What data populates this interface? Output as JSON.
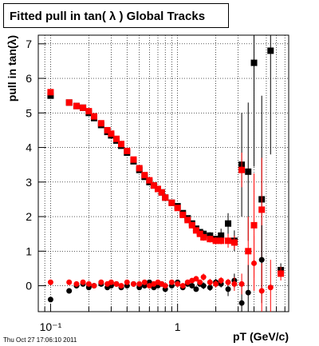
{
  "chart_data": {
    "type": "scatter",
    "title": "Fitted pull in tan( λ )  Global Tracks",
    "x_label": "pT (GeV/c)",
    "y_label": "pull in tan(λ)",
    "timestamp": "Thu Oct 27 17:06:10 2011",
    "log_x": true,
    "grid": true,
    "xlim": [
      0.08,
      7.5
    ],
    "ylim": [
      -0.75,
      7.25
    ],
    "xticks": [
      {
        "value": 0.1,
        "label": "10⁻¹"
      },
      1
    ],
    "xminor": [
      0.09,
      0.2,
      0.3,
      0.4,
      0.5,
      0.6,
      0.7,
      0.8,
      0.9,
      2,
      3,
      4,
      5,
      6,
      7
    ],
    "yticks": [
      0,
      1,
      2,
      3,
      4,
      5,
      6,
      7
    ],
    "series": [
      {
        "color": "#000000",
        "marker": "square",
        "x": [
          0.1,
          0.14,
          0.16,
          0.18,
          0.2,
          0.22,
          0.25,
          0.28,
          0.3,
          0.33,
          0.36,
          0.4,
          0.45,
          0.5,
          0.55,
          0.6,
          0.65,
          0.7,
          0.75,
          0.8,
          0.9,
          1.0,
          1.1,
          1.2,
          1.3,
          1.4,
          1.5,
          1.6,
          1.8,
          2.0,
          2.2,
          2.5,
          2.8,
          3.2,
          3.6,
          4.0,
          4.6,
          5.4,
          6.5
        ],
        "values": [
          5.5,
          5.3,
          5.2,
          5.15,
          5.0,
          4.85,
          4.65,
          4.45,
          4.35,
          4.2,
          4.05,
          3.85,
          3.6,
          3.35,
          3.15,
          3.0,
          2.9,
          2.8,
          2.7,
          2.55,
          2.4,
          2.3,
          2.1,
          1.95,
          1.8,
          1.65,
          1.55,
          1.5,
          1.45,
          1.35,
          1.45,
          1.8,
          1.3,
          3.5,
          3.3,
          6.45,
          2.5,
          6.8,
          0.45
        ],
        "errors": [
          0.05,
          0.05,
          0.05,
          0.05,
          0.05,
          0.05,
          0.05,
          0.05,
          0.05,
          0.05,
          0.05,
          0.05,
          0.05,
          0.05,
          0.05,
          0.05,
          0.05,
          0.05,
          0.05,
          0.05,
          0.05,
          0.05,
          0.05,
          0.05,
          0.05,
          0.05,
          0.05,
          0.1,
          0.1,
          0.1,
          0.2,
          0.3,
          0.3,
          1.5,
          2.0,
          3.0,
          3.0,
          3.0,
          0.2
        ]
      },
      {
        "color": "#ff0000",
        "marker": "square",
        "x": [
          0.1,
          0.14,
          0.16,
          0.18,
          0.2,
          0.22,
          0.25,
          0.28,
          0.3,
          0.33,
          0.36,
          0.4,
          0.45,
          0.5,
          0.55,
          0.6,
          0.65,
          0.7,
          0.75,
          0.8,
          0.9,
          1.0,
          1.1,
          1.2,
          1.3,
          1.4,
          1.5,
          1.6,
          1.8,
          2.0,
          2.2,
          2.5,
          2.8,
          3.2,
          3.6,
          4.0,
          4.6,
          5.4,
          6.5
        ],
        "values": [
          5.6,
          5.3,
          5.2,
          5.15,
          5.05,
          4.9,
          4.7,
          4.5,
          4.4,
          4.25,
          4.1,
          3.9,
          3.65,
          3.4,
          3.2,
          3.05,
          2.9,
          2.8,
          2.7,
          2.55,
          2.4,
          2.25,
          2.05,
          1.9,
          1.75,
          1.6,
          1.5,
          1.4,
          1.35,
          1.3,
          1.3,
          1.3,
          1.25,
          3.35,
          1.0,
          1.75,
          2.2,
          null,
          0.35
        ],
        "errors": [
          0.05,
          0.05,
          0.05,
          0.05,
          0.05,
          0.05,
          0.05,
          0.05,
          0.05,
          0.05,
          0.05,
          0.05,
          0.05,
          0.05,
          0.05,
          0.05,
          0.05,
          0.05,
          0.05,
          0.05,
          0.05,
          0.05,
          0.05,
          0.05,
          0.05,
          0.05,
          0.05,
          0.1,
          0.1,
          0.1,
          0.1,
          0.2,
          0.2,
          0.5,
          1.0,
          1.5,
          1.5,
          null,
          0.2
        ]
      },
      {
        "color": "#000000",
        "marker": "circle",
        "x": [
          0.1,
          0.14,
          0.16,
          0.18,
          0.2,
          0.22,
          0.25,
          0.28,
          0.3,
          0.33,
          0.36,
          0.4,
          0.45,
          0.5,
          0.55,
          0.6,
          0.65,
          0.7,
          0.75,
          0.8,
          0.9,
          1.0,
          1.1,
          1.2,
          1.3,
          1.4,
          1.5,
          1.6,
          1.8,
          2.0,
          2.2,
          2.5,
          2.8,
          3.2,
          3.6,
          4.0,
          4.6,
          5.4,
          6.5
        ],
        "values": [
          -0.4,
          -0.15,
          0.0,
          0.05,
          -0.05,
          0.0,
          0.05,
          -0.05,
          0.0,
          0.05,
          -0.05,
          0.0,
          0.05,
          -0.05,
          0.0,
          0.1,
          -0.05,
          0.0,
          0.05,
          -0.1,
          0.0,
          0.1,
          -0.05,
          0.05,
          0.0,
          -0.1,
          0.05,
          0.0,
          -0.05,
          0.1,
          0.05,
          -0.1,
          0.15,
          -0.5,
          -0.2,
          null,
          0.75,
          null,
          null
        ],
        "errors": [
          0.05,
          0.05,
          0.05,
          0.05,
          0.05,
          0.05,
          0.05,
          0.05,
          0.05,
          0.05,
          0.05,
          0.05,
          0.05,
          0.05,
          0.05,
          0.05,
          0.05,
          0.05,
          0.05,
          0.05,
          0.05,
          0.05,
          0.05,
          0.05,
          0.05,
          0.05,
          0.05,
          0.1,
          0.1,
          0.1,
          0.1,
          0.2,
          0.2,
          0.5,
          0.8,
          null,
          1.0,
          null,
          null
        ]
      },
      {
        "color": "#ff0000",
        "marker": "circle",
        "x": [
          0.1,
          0.14,
          0.16,
          0.18,
          0.2,
          0.22,
          0.25,
          0.28,
          0.3,
          0.33,
          0.36,
          0.4,
          0.45,
          0.5,
          0.55,
          0.6,
          0.65,
          0.7,
          0.75,
          0.8,
          0.9,
          1.0,
          1.1,
          1.2,
          1.3,
          1.4,
          1.5,
          1.6,
          1.8,
          2.0,
          2.2,
          2.5,
          2.8,
          3.2,
          3.6,
          4.0,
          4.6,
          5.4,
          6.5
        ],
        "values": [
          0.1,
          0.1,
          0.05,
          0.1,
          0.05,
          0.0,
          0.1,
          0.05,
          0.1,
          0.05,
          0.0,
          0.1,
          0.05,
          0.05,
          0.1,
          0.0,
          0.05,
          0.1,
          0.05,
          0.0,
          0.1,
          0.05,
          0.0,
          0.1,
          0.15,
          0.2,
          0.1,
          0.25,
          0.1,
          0.05,
          0.15,
          0.1,
          0.05,
          0.05,
          null,
          0.65,
          -0.15,
          -0.05,
          null
        ],
        "errors": [
          0.05,
          0.05,
          0.05,
          0.05,
          0.05,
          0.05,
          0.05,
          0.05,
          0.05,
          0.05,
          0.05,
          0.05,
          0.05,
          0.05,
          0.05,
          0.05,
          0.05,
          0.05,
          0.05,
          0.05,
          0.05,
          0.05,
          0.05,
          0.05,
          0.05,
          0.05,
          0.05,
          0.1,
          0.1,
          0.1,
          0.1,
          0.1,
          0.2,
          0.3,
          null,
          0.8,
          0.8,
          0.8,
          null
        ]
      }
    ]
  }
}
